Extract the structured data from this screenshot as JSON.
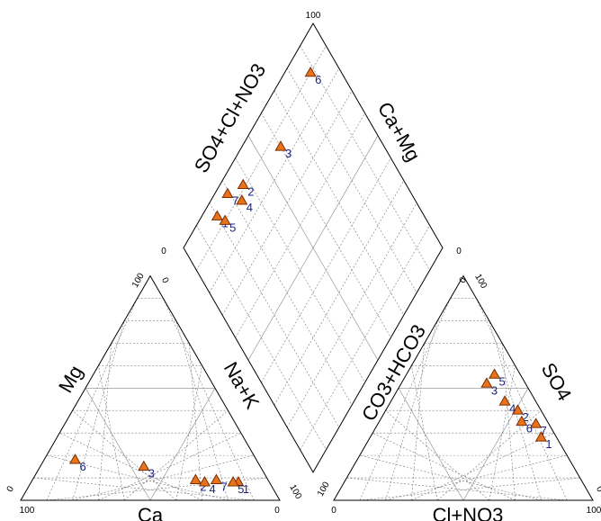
{
  "chart_data": {
    "type": "scatter",
    "axis_titles": {
      "cation_left": "Mg",
      "cation_right": "Na+K",
      "cation_bottom": "Ca",
      "anion_left": "CO3+HCO3",
      "anion_right": "SO4",
      "anion_bottom": "Cl+NO3",
      "diamond_left": "SO4+Cl+NO3",
      "diamond_right": "Ca+Mg"
    },
    "tick_labels": {
      "diamond_top": "100",
      "diamond_left": "0",
      "diamond_right": "0",
      "cation_apex": "100",
      "cation_apex_zero": "0",
      "cation_bottom_left": "100",
      "cation_bottom_left_zero": "0",
      "cation_bottom_right": "0",
      "cation_bottom_right_hundred": "100",
      "anion_apex": "100",
      "anion_apex_zero": "0",
      "anion_bottom_left": "0",
      "anion_bottom_left_hundred": "100",
      "anion_bottom_right": "100",
      "anion_bottom_right_zero": "0"
    },
    "units": "percent of meq/L",
    "marker_color": "#e8731c",
    "label_color": "#1a237e",
    "samples": [
      {
        "label": "1",
        "ca": 12,
        "mg": 8,
        "nak": 80,
        "hco3": 6,
        "so4": 28,
        "cl": 66
      },
      {
        "label": "2",
        "ca": 28,
        "mg": 9,
        "nak": 63,
        "hco3": 9,
        "so4": 40,
        "cl": 51
      },
      {
        "label": "3",
        "ca": 45,
        "mg": 15,
        "nak": 40,
        "hco3": 15,
        "so4": 52,
        "cl": 33
      },
      {
        "label": "4",
        "ca": 25,
        "mg": 8,
        "nak": 67,
        "hco3": 12,
        "so4": 44,
        "cl": 44
      },
      {
        "label": "5",
        "ca": 14,
        "mg": 8,
        "nak": 78,
        "hco3": 10,
        "so4": 56,
        "cl": 34
      },
      {
        "label": "6",
        "ca": 70,
        "mg": 18,
        "nak": 12,
        "hco3": 10,
        "so4": 35,
        "cl": 55
      },
      {
        "label": "7",
        "ca": 20,
        "mg": 9,
        "nak": 71,
        "hco3": 5,
        "so4": 34,
        "cl": 61
      }
    ]
  }
}
